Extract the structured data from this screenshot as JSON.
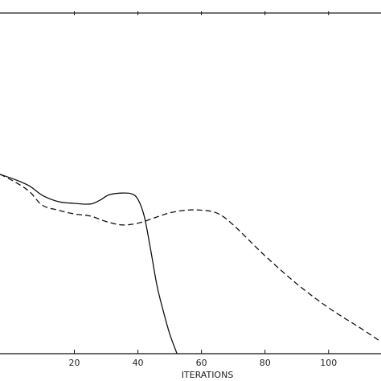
{
  "chart_data": {
    "type": "line",
    "title": "",
    "xlabel": "ITERATIONS",
    "ylabel": "",
    "xlim": [
      -3.4,
      116.5
    ],
    "ylim": [
      0.0,
      1.0
    ],
    "grid": false,
    "x_ticks": [
      20,
      40,
      60,
      80,
      100
    ],
    "x_tick_labels": [
      "20",
      "40",
      "60",
      "80",
      "100"
    ],
    "series": [
      {
        "style": "solid",
        "color": "#111111",
        "points": [
          [
            -3.4,
            0.524
          ],
          [
            2,
            0.506
          ],
          [
            6,
            0.489
          ],
          [
            10,
            0.462
          ],
          [
            15,
            0.444
          ],
          [
            20,
            0.439
          ],
          [
            25,
            0.437
          ],
          [
            28,
            0.448
          ],
          [
            31,
            0.464
          ],
          [
            35,
            0.469
          ],
          [
            38,
            0.467
          ],
          [
            40,
            0.451
          ],
          [
            42,
            0.401
          ],
          [
            44,
            0.304
          ],
          [
            46,
            0.199
          ],
          [
            48,
            0.124
          ],
          [
            50,
            0.058
          ],
          [
            52.3,
            0.0
          ]
        ]
      },
      {
        "style": "dashed",
        "color": "#111111",
        "points": [
          [
            -3.4,
            0.524
          ],
          [
            2,
            0.498
          ],
          [
            6,
            0.472
          ],
          [
            10,
            0.433
          ],
          [
            15,
            0.419
          ],
          [
            20,
            0.408
          ],
          [
            25,
            0.402
          ],
          [
            30,
            0.386
          ],
          [
            35,
            0.376
          ],
          [
            40,
            0.381
          ],
          [
            45,
            0.396
          ],
          [
            50,
            0.411
          ],
          [
            55,
            0.419
          ],
          [
            60,
            0.419
          ],
          [
            65,
            0.41
          ],
          [
            70,
            0.376
          ],
          [
            80,
            0.286
          ],
          [
            90,
            0.204
          ],
          [
            100,
            0.134
          ],
          [
            110,
            0.075
          ],
          [
            116.5,
            0.035
          ]
        ]
      },
      {
        "style": "solid",
        "color": "#111111",
        "points": [
          [
            -3.4,
            0.995
          ],
          [
            116.5,
            0.995
          ]
        ]
      }
    ]
  }
}
